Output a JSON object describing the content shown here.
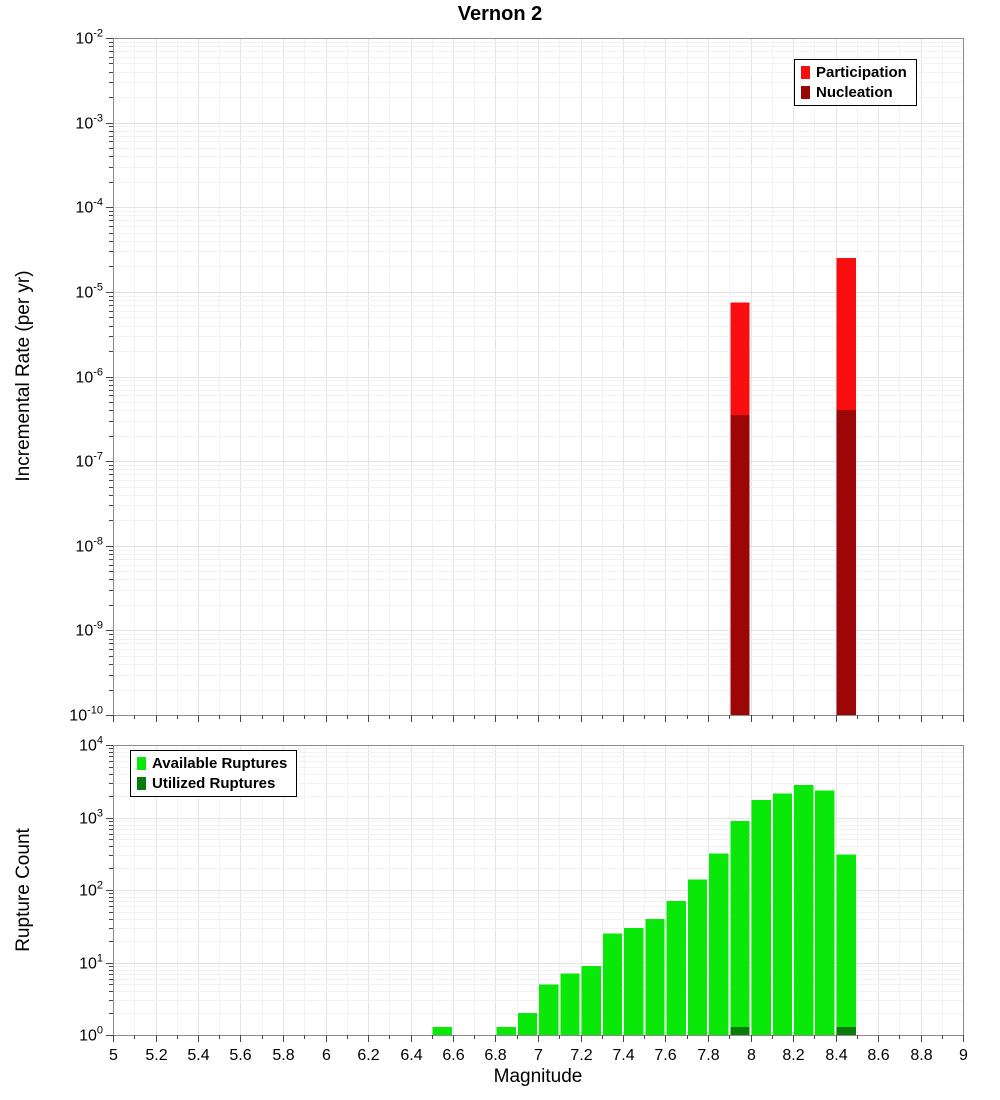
{
  "title": "Vernon 2",
  "chart_data": [
    {
      "type": "bar",
      "title": "Vernon 2",
      "xlabel": "",
      "ylabel": "Incremental Rate (per yr)",
      "yscale": "log",
      "xlim": [
        5,
        9
      ],
      "ylim": [
        1e-10,
        0.01
      ],
      "xtick_step": 0.2,
      "xminor_step": 0.1,
      "bin_width": 0.1,
      "grid": true,
      "legend_position": "top-right",
      "series": [
        {
          "name": "Participation",
          "color": "#f80e0e",
          "x": [
            7.95,
            8.45
          ],
          "values": [
            7.5e-06,
            2.5e-05
          ]
        },
        {
          "name": "Nucleation",
          "color": "#9c0606",
          "x": [
            7.95,
            8.45
          ],
          "values": [
            3.5e-07,
            4e-07
          ]
        }
      ]
    },
    {
      "type": "bar",
      "title": "",
      "xlabel": "Magnitude",
      "ylabel": "Rupture Count",
      "yscale": "log",
      "xlim": [
        5,
        9
      ],
      "ylim": [
        1,
        10000.0
      ],
      "xtick_step": 0.2,
      "xminor_step": 0.1,
      "bin_width": 0.1,
      "grid": true,
      "legend_position": "top-left",
      "series": [
        {
          "name": "Available Ruptures",
          "color": "#0ae80a",
          "x": [
            6.55,
            6.85,
            6.95,
            7.05,
            7.15,
            7.25,
            7.35,
            7.45,
            7.55,
            7.65,
            7.75,
            7.85,
            7.95,
            8.05,
            8.15,
            8.25,
            8.35,
            8.45
          ],
          "values": [
            1,
            1,
            2,
            5,
            7,
            9,
            25,
            30,
            40,
            70,
            140,
            320,
            900,
            1750,
            2150,
            2800,
            2350,
            310
          ]
        },
        {
          "name": "Utilized Ruptures",
          "color": "#0a7a0a",
          "x": [
            7.95,
            8.45
          ],
          "values": [
            1,
            1
          ]
        }
      ]
    }
  ],
  "style": {
    "grid_major_color": "#e4e4e4",
    "grid_minor_color": "#f2f2f2",
    "frame_color": "#8c8c8c",
    "tick_color": "#444444"
  }
}
